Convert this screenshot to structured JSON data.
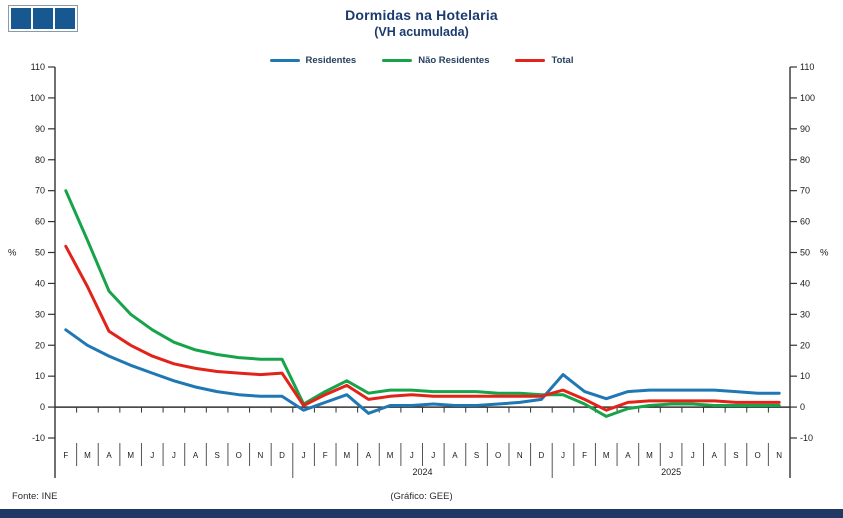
{
  "logo": {
    "icon": "gee-logo",
    "square_count": 3,
    "square_color": "#16588f"
  },
  "footer": {
    "source": "Fonte: INE",
    "credit": "(Gráfico: GEE)",
    "bar_color": "#1f3864"
  },
  "chart_data": {
    "type": "line",
    "title": "Dormidas na Hotelaria",
    "subtitle": "(VH acumulada)",
    "title_color": "#1b3a6e",
    "ylabel_left": "%",
    "ylabel_right": "%",
    "ylim": [
      -10,
      110
    ],
    "ytick_step": 10,
    "grid": false,
    "legend_position": "top",
    "x_axis_at_zero": true,
    "categories": [
      "F",
      "M",
      "A",
      "M",
      "J",
      "J",
      "A",
      "S",
      "O",
      "N",
      "D",
      "J",
      "F",
      "M",
      "A",
      "M",
      "J",
      "J",
      "A",
      "S",
      "O",
      "N",
      "D",
      "J",
      "F",
      "M",
      "A",
      "M",
      "J",
      "J",
      "A",
      "S",
      "O",
      "N"
    ],
    "year_labels": [
      {
        "text": "2024",
        "start_index": 11,
        "end_index": 22
      },
      {
        "text": "2025",
        "start_index": 23,
        "end_index": 33
      }
    ],
    "year_boundaries_after_index": [
      10,
      22
    ],
    "series": [
      {
        "name": "Residentes",
        "color": "#1f77b4",
        "values": [
          25,
          20,
          16.5,
          13.5,
          11,
          8.5,
          6.5,
          5,
          4,
          3.5,
          3.5,
          -1,
          1.5,
          4,
          -2,
          0.5,
          0.5,
          1,
          0.5,
          0.5,
          1,
          1.5,
          2.5,
          10.5,
          5,
          2.7,
          5,
          5.5,
          5.5,
          5.5,
          5.5,
          5,
          4.5,
          4.5
        ]
      },
      {
        "name": "Não Residentes",
        "color": "#17a34a",
        "values": [
          70,
          54,
          37.5,
          30,
          25,
          21,
          18.5,
          17,
          16,
          15.5,
          15.5,
          1,
          5,
          8.5,
          4.5,
          5.5,
          5.5,
          5,
          5,
          5,
          4.5,
          4.5,
          4,
          4,
          1,
          -3,
          -0.5,
          0.5,
          1,
          1,
          0.5,
          0.5,
          0.5,
          0.5
        ]
      },
      {
        "name": "Total",
        "color": "#e2231a",
        "values": [
          52,
          39,
          24.5,
          20,
          16.5,
          14,
          12.5,
          11.5,
          11,
          10.5,
          11,
          0.5,
          4,
          7,
          2.5,
          3.5,
          4,
          3.5,
          3.5,
          3.5,
          3.5,
          3.5,
          3.5,
          5.5,
          2.5,
          -1,
          1.5,
          2,
          2,
          2,
          2,
          1.5,
          1.5,
          1.5
        ]
      }
    ]
  }
}
